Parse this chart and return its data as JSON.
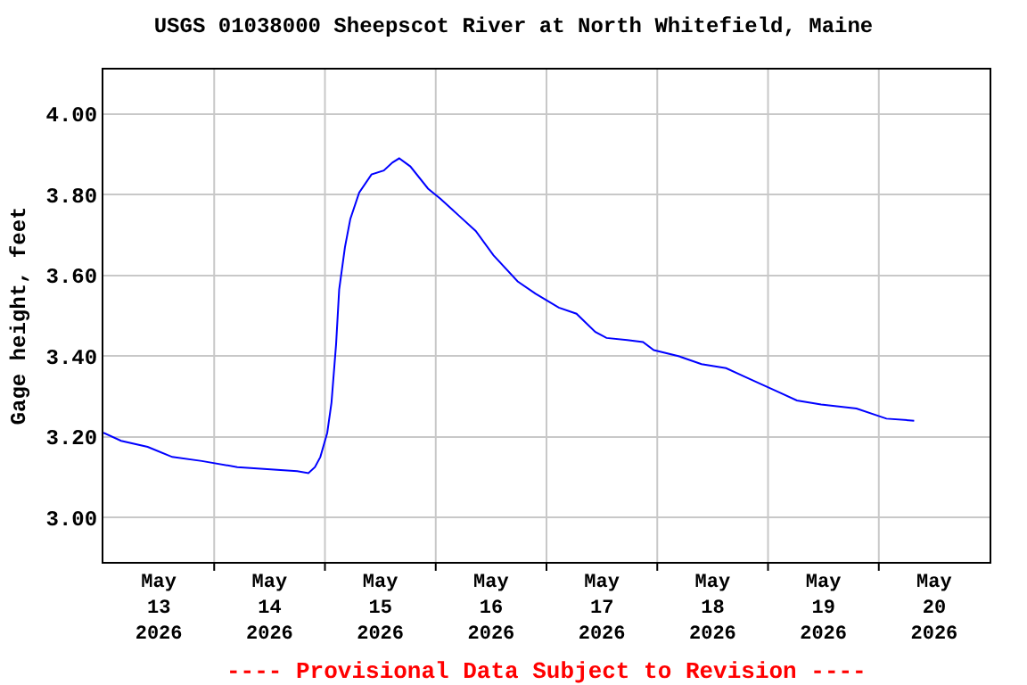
{
  "chart_data": {
    "type": "line",
    "title": "USGS 01038000 Sheepscot River at North Whitefield, Maine",
    "ylabel": "Gage height, feet",
    "annotations": [
      "---- Provisional Data Subject to Revision ----"
    ],
    "x": [
      "2026-05-13T00:00",
      "2026-05-13T03:50",
      "2026-05-13T09:35",
      "2026-05-13T14:55",
      "2026-05-13T21:20",
      "2026-05-14T05:00",
      "2026-05-14T11:30",
      "2026-05-14T18:00",
      "2026-05-14T20:25",
      "2026-05-14T21:50",
      "2026-05-14T23:00",
      "2026-05-15T00:30",
      "2026-05-15T01:25",
      "2026-05-15T02:25",
      "2026-05-15T03:05",
      "2026-05-15T04:20",
      "2026-05-15T05:30",
      "2026-05-15T07:25",
      "2026-05-15T10:05",
      "2026-05-15T12:45",
      "2026-05-15T14:40",
      "2026-05-15T16:05",
      "2026-05-15T18:30",
      "2026-05-15T22:20",
      "2026-05-16T01:00",
      "2026-05-16T04:50",
      "2026-05-16T08:40",
      "2026-05-16T12:30",
      "2026-05-16T17:45",
      "2026-05-16T21:35",
      "2026-05-17T02:40",
      "2026-05-17T06:30",
      "2026-05-17T10:35",
      "2026-05-17T13:00",
      "2026-05-17T17:30",
      "2026-05-17T20:55",
      "2026-05-17T23:15",
      "2026-05-18T04:35",
      "2026-05-18T09:35",
      "2026-05-18T14:55",
      "2026-05-18T18:45",
      "2026-05-18T22:35",
      "2026-05-19T02:25",
      "2026-05-19T06:15",
      "2026-05-19T11:30",
      "2026-05-19T19:10",
      "2026-05-20T01:40",
      "2026-05-20T07:40"
    ],
    "series": [
      {
        "color": "#0000ff",
        "values": [
          3.21,
          3.19,
          3.175,
          3.15,
          3.14,
          3.125,
          3.12,
          3.115,
          3.11,
          3.125,
          3.15,
          3.21,
          3.285,
          3.43,
          3.565,
          3.67,
          3.74,
          3.805,
          3.85,
          3.86,
          3.88,
          3.89,
          3.87,
          3.815,
          3.79,
          3.75,
          3.71,
          3.65,
          3.585,
          3.555,
          3.52,
          3.505,
          3.46,
          3.445,
          3.44,
          3.435,
          3.415,
          3.4,
          3.38,
          3.37,
          3.35,
          3.33,
          3.31,
          3.29,
          3.28,
          3.27,
          3.245,
          3.24
        ]
      }
    ],
    "xlim": [
      "2026-05-13T00:00",
      "2026-05-21T00:00"
    ],
    "xticks": [
      {
        "value": "2026-05-14T00:00",
        "label": null
      },
      {
        "value": "2026-05-15T00:00",
        "label": null
      },
      {
        "value": "2026-05-16T00:00",
        "label": null
      },
      {
        "value": "2026-05-17T00:00",
        "label": null
      },
      {
        "value": "2026-05-18T00:00",
        "label": null
      },
      {
        "value": "2026-05-19T00:00",
        "label": null
      },
      {
        "value": "2026-05-20T00:00",
        "label": null
      },
      {
        "value": "2026-05-13T12:00",
        "label": "May\n13\n2026"
      },
      {
        "value": "2026-05-14T12:00",
        "label": "May\n14\n2026"
      },
      {
        "value": "2026-05-15T12:00",
        "label": "May\n15\n2026"
      },
      {
        "value": "2026-05-16T12:00",
        "label": "May\n16\n2026"
      },
      {
        "value": "2026-05-17T12:00",
        "label": "May\n17\n2026"
      },
      {
        "value": "2026-05-18T12:00",
        "label": "May\n18\n2026"
      },
      {
        "value": "2026-05-19T12:00",
        "label": "May\n19\n2026"
      },
      {
        "value": "2026-05-20T12:00",
        "label": "May\n20\n2026"
      }
    ],
    "ylim": [
      2.89,
      4.11
    ],
    "yticks": [
      {
        "value": 3.0,
        "label": "3.00"
      },
      {
        "value": 3.2,
        "label": "3.20"
      },
      {
        "value": 3.4,
        "label": "3.40"
      },
      {
        "value": 3.6,
        "label": "3.60"
      },
      {
        "value": 3.8,
        "label": "3.80"
      },
      {
        "value": 4.0,
        "label": "4.00"
      }
    ],
    "grid": true
  }
}
